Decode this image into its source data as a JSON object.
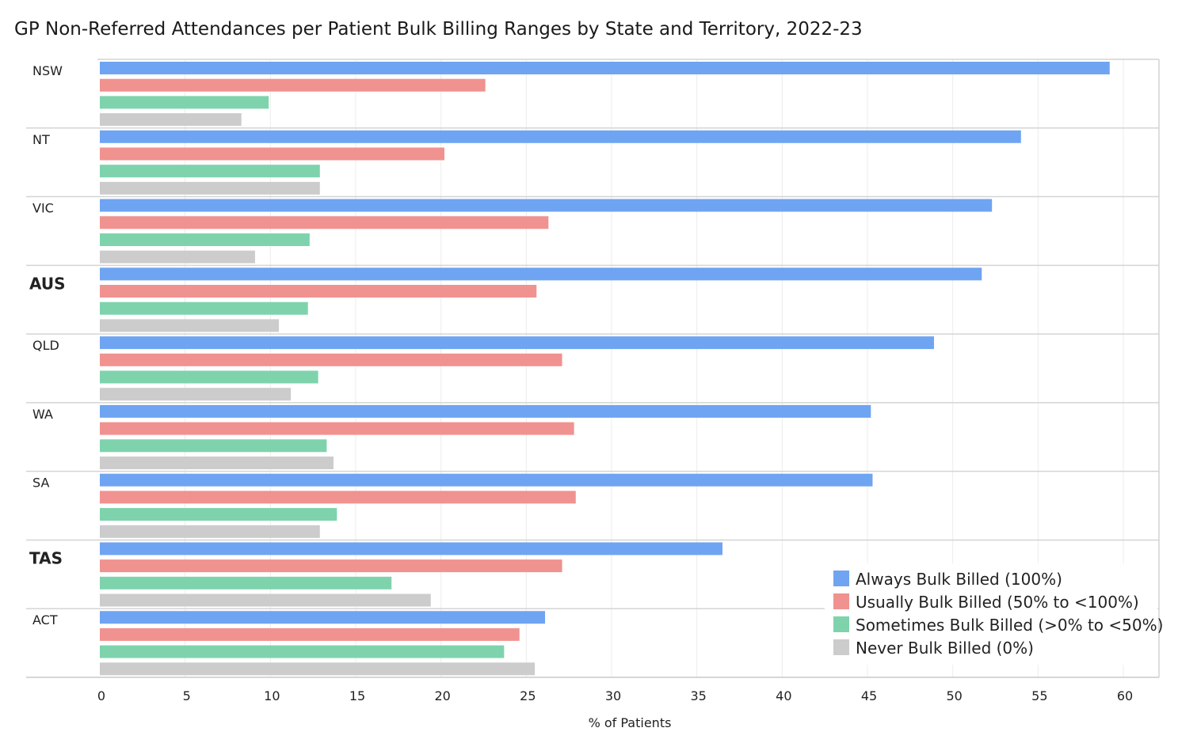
{
  "title": "GP Non-Referred Attendances per Patient Bulk Billing Ranges by State and Territory, 2022-23",
  "chart_data": {
    "type": "bar",
    "orientation": "horizontal",
    "title": "GP Non-Referred Attendances per Patient Bulk Billing Ranges by State and Territory, 2022-23",
    "xlabel": "% of Patients",
    "ylabel": "",
    "xlim": [
      0,
      62
    ],
    "xticks": [
      0,
      5,
      10,
      15,
      20,
      25,
      30,
      35,
      40,
      45,
      50,
      55,
      60
    ],
    "grid": true,
    "legend_position": "bottom-right",
    "categories": [
      "NSW",
      "NT",
      "VIC",
      "AUS",
      "QLD",
      "WA",
      "SA",
      "TAS",
      "ACT"
    ],
    "bold_categories": [
      "AUS",
      "TAS"
    ],
    "series": [
      {
        "name": "Always Bulk Billed",
        "range": "(100%)",
        "color": "#6fa4f2",
        "values": [
          59.2,
          54.0,
          52.3,
          51.7,
          48.9,
          45.2,
          45.3,
          36.5,
          26.1
        ]
      },
      {
        "name": "Usually Bulk Billed",
        "range": "(50% to <100%)",
        "color": "#f0928f",
        "values": [
          22.6,
          20.2,
          26.3,
          25.6,
          27.1,
          27.8,
          27.9,
          27.1,
          24.6
        ]
      },
      {
        "name": "Sometimes Bulk Billed",
        "range": "(>0% to <50%)",
        "color": "#7ed3ad",
        "values": [
          9.9,
          12.9,
          12.3,
          12.2,
          12.8,
          13.3,
          13.9,
          17.1,
          23.7
        ]
      },
      {
        "name": "Never Bulk Billed",
        "range": "(0%)",
        "color": "#cccccc",
        "values": [
          8.3,
          12.9,
          9.1,
          10.5,
          11.2,
          13.7,
          12.9,
          19.4,
          25.5
        ]
      }
    ]
  }
}
